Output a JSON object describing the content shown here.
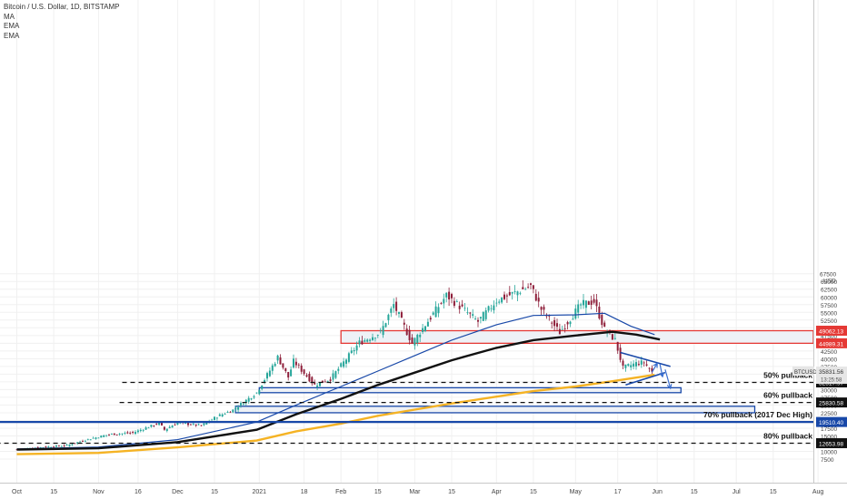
{
  "chart_data": {
    "type": "candlestick",
    "title": "Bitcoin / U.S. Dollar, 1D, BITSTAMP",
    "indicators": [
      "MA",
      "EMA",
      "EMA"
    ],
    "currency": "USD",
    "symbol": "BTCUSD",
    "last_price": "35831.56",
    "countdown": "13:25:58",
    "y_axis": {
      "ylim": [
        5000,
        67500
      ],
      "ticks": [
        7500,
        10000,
        12500,
        15000,
        17500,
        20000,
        22500,
        25000,
        27500,
        30000,
        32500,
        35000,
        37500,
        40000,
        42500,
        45000,
        47500,
        50000,
        52500,
        55000,
        57500,
        60000,
        62500,
        65000,
        67500
      ],
      "scale": "linear",
      "position": "right"
    },
    "x_axis": {
      "labels": [
        {
          "label": "Oct",
          "date": "2020-10-01"
        },
        {
          "label": "15",
          "date": "2020-10-15"
        },
        {
          "label": "Nov",
          "date": "2020-11-01"
        },
        {
          "label": "16",
          "date": "2020-11-16"
        },
        {
          "label": "Dec",
          "date": "2020-12-01"
        },
        {
          "label": "15",
          "date": "2020-12-15"
        },
        {
          "label": "2021",
          "date": "2021-01-01"
        },
        {
          "label": "18",
          "date": "2021-01-18"
        },
        {
          "label": "Feb",
          "date": "2021-02-01"
        },
        {
          "label": "15",
          "date": "2021-02-15"
        },
        {
          "label": "Mar",
          "date": "2021-03-01"
        },
        {
          "label": "15",
          "date": "2021-03-15"
        },
        {
          "label": "Apr",
          "date": "2021-04-01"
        },
        {
          "label": "15",
          "date": "2021-04-15"
        },
        {
          "label": "May",
          "date": "2021-05-01"
        },
        {
          "label": "17",
          "date": "2021-05-17"
        },
        {
          "label": "Jun",
          "date": "2021-06-01"
        },
        {
          "label": "15",
          "date": "2021-06-15"
        },
        {
          "label": "Jul",
          "date": "2021-07-01"
        },
        {
          "label": "15",
          "date": "2021-07-15"
        },
        {
          "label": "Aug",
          "date": "2021-08-01"
        }
      ]
    },
    "price_keypoints": [
      {
        "date": "2020-10-01",
        "price": 10600
      },
      {
        "date": "2020-10-10",
        "price": 11300
      },
      {
        "date": "2020-10-20",
        "price": 11900
      },
      {
        "date": "2020-10-27",
        "price": 13700
      },
      {
        "date": "2020-11-05",
        "price": 15500
      },
      {
        "date": "2020-11-14",
        "price": 16000
      },
      {
        "date": "2020-11-24",
        "price": 19200
      },
      {
        "date": "2020-11-26",
        "price": 17000
      },
      {
        "date": "2020-12-01",
        "price": 19300
      },
      {
        "date": "2020-12-10",
        "price": 18300
      },
      {
        "date": "2020-12-16",
        "price": 21300
      },
      {
        "date": "2020-12-22",
        "price": 23400
      },
      {
        "date": "2020-12-31",
        "price": 29000
      },
      {
        "date": "2021-01-08",
        "price": 40500
      },
      {
        "date": "2021-01-12",
        "price": 34000
      },
      {
        "date": "2021-01-14",
        "price": 39200
      },
      {
        "date": "2021-01-22",
        "price": 31500
      },
      {
        "date": "2021-01-28",
        "price": 33500
      },
      {
        "date": "2021-02-08",
        "price": 45200
      },
      {
        "date": "2021-02-16",
        "price": 48500
      },
      {
        "date": "2021-02-21",
        "price": 57500
      },
      {
        "date": "2021-02-28",
        "price": 45000
      },
      {
        "date": "2021-03-13",
        "price": 60500
      },
      {
        "date": "2021-03-25",
        "price": 52000
      },
      {
        "date": "2021-04-01",
        "price": 58800
      },
      {
        "date": "2021-04-14",
        "price": 63500
      },
      {
        "date": "2021-04-18",
        "price": 56000
      },
      {
        "date": "2021-04-25",
        "price": 48500
      },
      {
        "date": "2021-05-03",
        "price": 57500
      },
      {
        "date": "2021-05-08",
        "price": 58500
      },
      {
        "date": "2021-05-12",
        "price": 49500
      },
      {
        "date": "2021-05-16",
        "price": 46000
      },
      {
        "date": "2021-05-19",
        "price": 37000
      },
      {
        "date": "2021-05-24",
        "price": 38500
      },
      {
        "date": "2021-05-27",
        "price": 38800
      },
      {
        "date": "2021-05-30",
        "price": 35800
      }
    ],
    "series": [
      {
        "name": "MA",
        "color": "#1848a8",
        "points": [
          {
            "date": "2020-10-01",
            "price": 10800
          },
          {
            "date": "2020-11-01",
            "price": 11400
          },
          {
            "date": "2020-12-01",
            "price": 13800
          },
          {
            "date": "2020-12-31",
            "price": 19500
          },
          {
            "date": "2021-01-15",
            "price": 25000
          },
          {
            "date": "2021-02-01",
            "price": 31000
          },
          {
            "date": "2021-02-15",
            "price": 36000
          },
          {
            "date": "2021-03-01",
            "price": 41000
          },
          {
            "date": "2021-03-15",
            "price": 46000
          },
          {
            "date": "2021-04-01",
            "price": 51000
          },
          {
            "date": "2021-04-15",
            "price": 54000
          },
          {
            "date": "2021-05-01",
            "price": 54200
          },
          {
            "date": "2021-05-12",
            "price": 54700
          },
          {
            "date": "2021-05-22",
            "price": 50500
          },
          {
            "date": "2021-05-31",
            "price": 47800
          }
        ]
      },
      {
        "name": "EMA",
        "color": "#111111",
        "points": [
          {
            "date": "2020-10-01",
            "price": 10600
          },
          {
            "date": "2020-11-01",
            "price": 11000
          },
          {
            "date": "2020-12-01",
            "price": 13000
          },
          {
            "date": "2020-12-31",
            "price": 17000
          },
          {
            "date": "2021-01-15",
            "price": 22000
          },
          {
            "date": "2021-02-01",
            "price": 27000
          },
          {
            "date": "2021-02-15",
            "price": 31500
          },
          {
            "date": "2021-03-01",
            "price": 35500
          },
          {
            "date": "2021-03-15",
            "price": 39500
          },
          {
            "date": "2021-04-01",
            "price": 43500
          },
          {
            "date": "2021-04-15",
            "price": 46000
          },
          {
            "date": "2021-05-01",
            "price": 47500
          },
          {
            "date": "2021-05-15",
            "price": 48700
          },
          {
            "date": "2021-05-24",
            "price": 47800
          },
          {
            "date": "2021-06-02",
            "price": 46200
          }
        ]
      },
      {
        "name": "EMA",
        "color": "#f5b324",
        "points": [
          {
            "date": "2020-10-01",
            "price": 9100
          },
          {
            "date": "2020-11-01",
            "price": 9500
          },
          {
            "date": "2020-12-01",
            "price": 11300
          },
          {
            "date": "2020-12-31",
            "price": 13500
          },
          {
            "date": "2021-01-15",
            "price": 16500
          },
          {
            "date": "2021-02-01",
            "price": 19000
          },
          {
            "date": "2021-02-15",
            "price": 21500
          },
          {
            "date": "2021-03-01",
            "price": 23500
          },
          {
            "date": "2021-03-15",
            "price": 25500
          },
          {
            "date": "2021-04-01",
            "price": 27700
          },
          {
            "date": "2021-04-15",
            "price": 29500
          },
          {
            "date": "2021-05-01",
            "price": 31000
          },
          {
            "date": "2021-05-15",
            "price": 32700
          },
          {
            "date": "2021-05-31",
            "price": 34800
          }
        ]
      }
    ],
    "zones": [
      {
        "from": "2021-02-01",
        "to": "2021-08-31",
        "low": 44989.31,
        "high": 49062.13,
        "fill": "#eef1f6",
        "stroke": "#e53935"
      },
      {
        "from": "2021-01-01",
        "to": "2021-06-10",
        "low": 29000,
        "high": 30600,
        "fill": "#eef1f6",
        "stroke": "#1848a8"
      },
      {
        "from": "2020-12-23",
        "to": "2021-07-08",
        "low": 22500,
        "high": 24600,
        "fill": "#eef1f6",
        "stroke": "#1848a8"
      }
    ],
    "levels": [
      {
        "price": 32317.97,
        "label": "50% pullback",
        "price_label": "32317.97",
        "style": "dashed",
        "color": "#111111",
        "from": "2020-11-10"
      },
      {
        "price": 25830.58,
        "label": "60% pullback",
        "price_label": "25830.58",
        "style": "dashed",
        "color": "#111111",
        "from": "2020-11-09"
      },
      {
        "price": 19510.4,
        "label": "70% pullback (2017 Dec High)",
        "price_label": "19510.40",
        "style": "solid",
        "color": "#1848a8",
        "from": "2020-09-20"
      },
      {
        "price": 12653.98,
        "label": "80% pullback",
        "price_label": "12653.98",
        "style": "dashed",
        "color": "#111111",
        "from": "2020-09-20"
      }
    ],
    "price_labels": [
      {
        "price": 49062.13,
        "text": "49062.13",
        "bg": "#e53935"
      },
      {
        "price": 44989.31,
        "text": "44989.31",
        "bg": "#e53935"
      }
    ],
    "triangle": [
      {
        "from": {
          "date": "2021-05-18",
          "price": 42000
        },
        "to": {
          "date": "2021-06-06",
          "price": 37500
        }
      },
      {
        "from": {
          "date": "2021-05-20",
          "price": 31500
        },
        "to": {
          "date": "2021-06-04",
          "price": 35500
        }
      }
    ],
    "arrows": [
      {
        "from": {
          "date": "2021-05-30",
          "price": 35600
        },
        "to": {
          "date": "2021-06-01",
          "price": 38500
        }
      },
      {
        "from": {
          "date": "2021-06-02",
          "price": 38300
        },
        "to": {
          "date": "2021-06-03",
          "price": 34200
        }
      },
      {
        "from": {
          "date": "2021-06-04",
          "price": 36500
        },
        "to": {
          "date": "2021-06-06",
          "price": 30400
        }
      }
    ],
    "colors": {
      "up": "#26a69a",
      "down": "#8e1f3a",
      "grid": "#f0f0f0"
    }
  }
}
